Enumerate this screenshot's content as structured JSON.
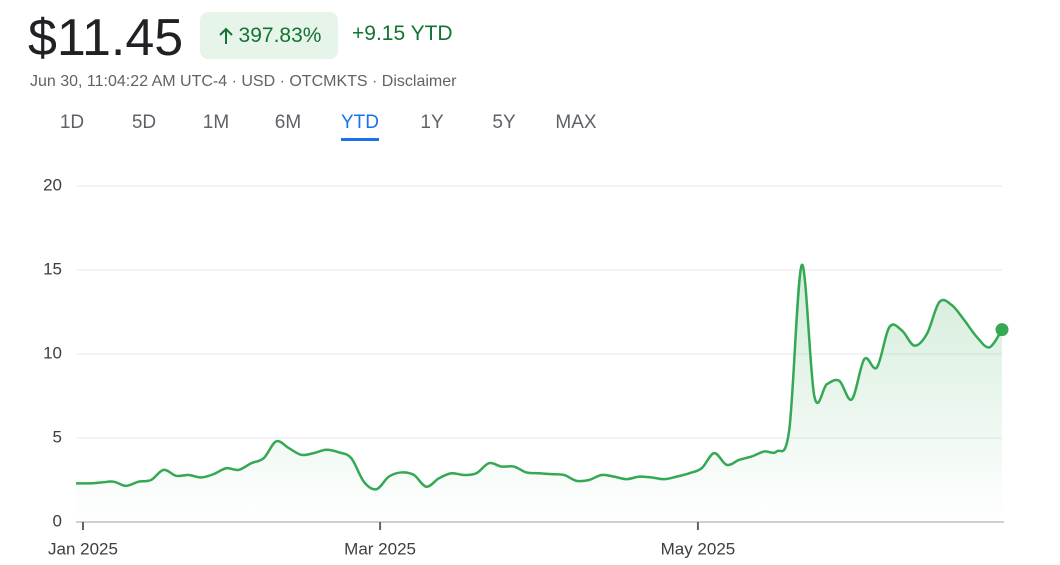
{
  "header": {
    "price": "$11.45",
    "change_percent": "397.83%",
    "change_abs": "+9.15 YTD",
    "subtitle": "Jun 30, 11:04:22 AM UTC-4 · USD · OTCMKTS · Disclaimer"
  },
  "tabs": {
    "items": [
      "1D",
      "5D",
      "1M",
      "6M",
      "YTD",
      "1Y",
      "5Y",
      "MAX"
    ],
    "active": 4
  },
  "chart_data": {
    "type": "line",
    "color": "#34a853",
    "grid": true,
    "values": [
      2.3,
      2.3,
      2.35,
      2.4,
      2.15,
      2.4,
      2.5,
      3.1,
      2.75,
      2.8,
      2.65,
      2.85,
      3.2,
      3.1,
      3.5,
      3.8,
      4.8,
      4.4,
      4.0,
      4.1,
      4.3,
      4.15,
      3.8,
      2.4,
      1.95,
      2.7,
      2.95,
      2.8,
      2.1,
      2.6,
      2.9,
      2.8,
      2.9,
      3.5,
      3.3,
      3.3,
      2.95,
      2.9,
      2.85,
      2.8,
      2.45,
      2.5,
      2.8,
      2.7,
      2.55,
      2.7,
      2.65,
      2.55,
      2.7,
      2.9,
      3.2,
      4.1,
      3.4,
      3.7,
      3.9,
      4.2,
      4.2,
      5.5,
      15.3,
      7.5,
      8.2,
      8.4,
      7.3,
      9.7,
      9.2,
      11.6,
      11.4,
      10.5,
      11.2,
      13.1,
      12.9,
      12.0,
      11.0,
      10.4,
      11.45
    ],
    "xlim": [
      0,
      74
    ],
    "xticks": [
      {
        "value": 0.56,
        "label": "Jan 2025"
      },
      {
        "value": 24.3,
        "label": "Mar 2025"
      },
      {
        "value": 49.7,
        "label": "May 2025"
      }
    ],
    "ylim": [
      0,
      20
    ],
    "yticks": [
      0,
      5,
      10,
      15,
      20
    ]
  }
}
